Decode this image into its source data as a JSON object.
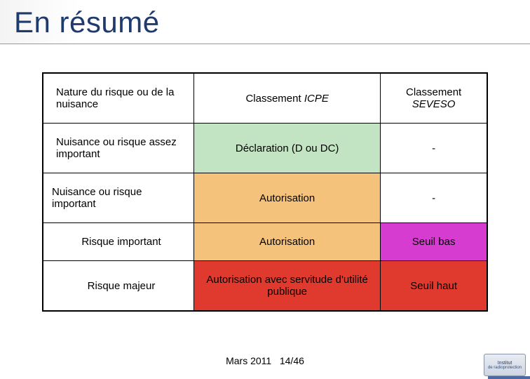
{
  "title": "En résumé",
  "table": {
    "columns": [
      "Nature du risque ou de la nuisance",
      "Classement ICPE",
      "Classement SEVESO"
    ],
    "column_emphasis": [
      "",
      "ICPE",
      "SEVESO"
    ],
    "rows": [
      {
        "cells": [
          "Nuisance ou risque assez important",
          "Déclaration (D ou DC)",
          "-"
        ],
        "bg": [
          "#ffffff",
          "#c2e4c2",
          "#ffffff"
        ]
      },
      {
        "cells": [
          "Nuisance ou risque important",
          "Autorisation",
          "-"
        ],
        "bg": [
          "#ffffff",
          "#f4c27a",
          "#ffffff"
        ]
      },
      {
        "cells": [
          "Risque important",
          "Autorisation",
          "Seuil bas"
        ],
        "bg": [
          "#ffffff",
          "#f4c27a",
          "#d53ccf"
        ]
      },
      {
        "cells": [
          "Risque majeur",
          "Autorisation avec servitude d'utilité publique",
          "Seuil haut"
        ],
        "bg": [
          "#ffffff",
          "#e03a2e",
          "#e03a2e"
        ]
      }
    ],
    "border_color": "#000000",
    "header_bg": "#ffffff",
    "font_size": 15
  },
  "footer": {
    "date": "Mars 2011",
    "page": "14/46"
  },
  "logo": {
    "line1": "Institut",
    "line2": "de radioprotection"
  },
  "colors": {
    "title": "#1f3b6e"
  }
}
